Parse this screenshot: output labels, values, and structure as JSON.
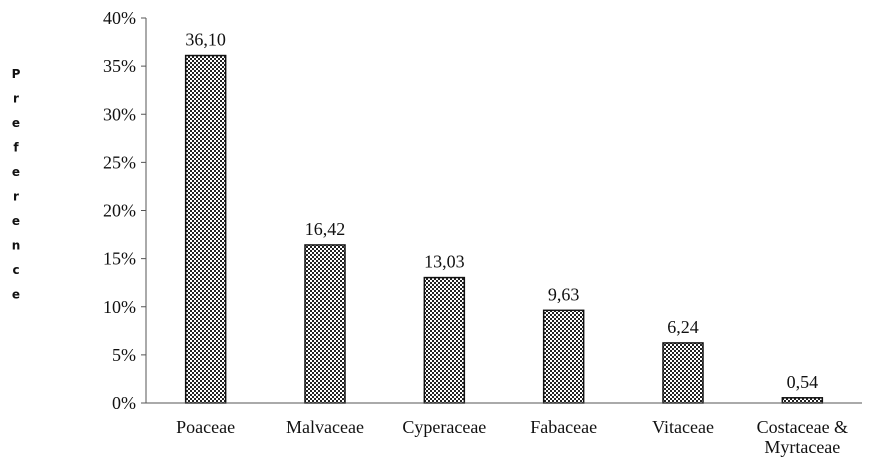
{
  "chart_data": {
    "type": "bar",
    "title": "",
    "xlabel": "",
    "ylabel": "Preference",
    "categories": [
      "Poaceae",
      "Malvaceae",
      "Cyperaceae",
      "Fabaceae",
      "Vitaceae",
      "Costaceae & Myrtaceae"
    ],
    "values": [
      36.1,
      16.42,
      13.03,
      9.63,
      6.24,
      0.54
    ],
    "value_labels": [
      "36,10",
      "16,42",
      "13,03",
      "9,63",
      "6,24",
      "0,54"
    ],
    "ylim": [
      0,
      40
    ],
    "yticks": [
      0,
      5,
      10,
      15,
      20,
      25,
      30,
      35,
      40
    ],
    "ytick_labels": [
      "0%",
      "5%",
      "10%",
      "15%",
      "20%",
      "25%",
      "30%",
      "35%",
      "40%"
    ],
    "grid": false,
    "bar_fill": "crosshatch",
    "colors": {
      "bar_pattern_dark": "#222222",
      "bar_pattern_light": "#ffffff",
      "axis": "#555555",
      "text": "#111111"
    }
  }
}
